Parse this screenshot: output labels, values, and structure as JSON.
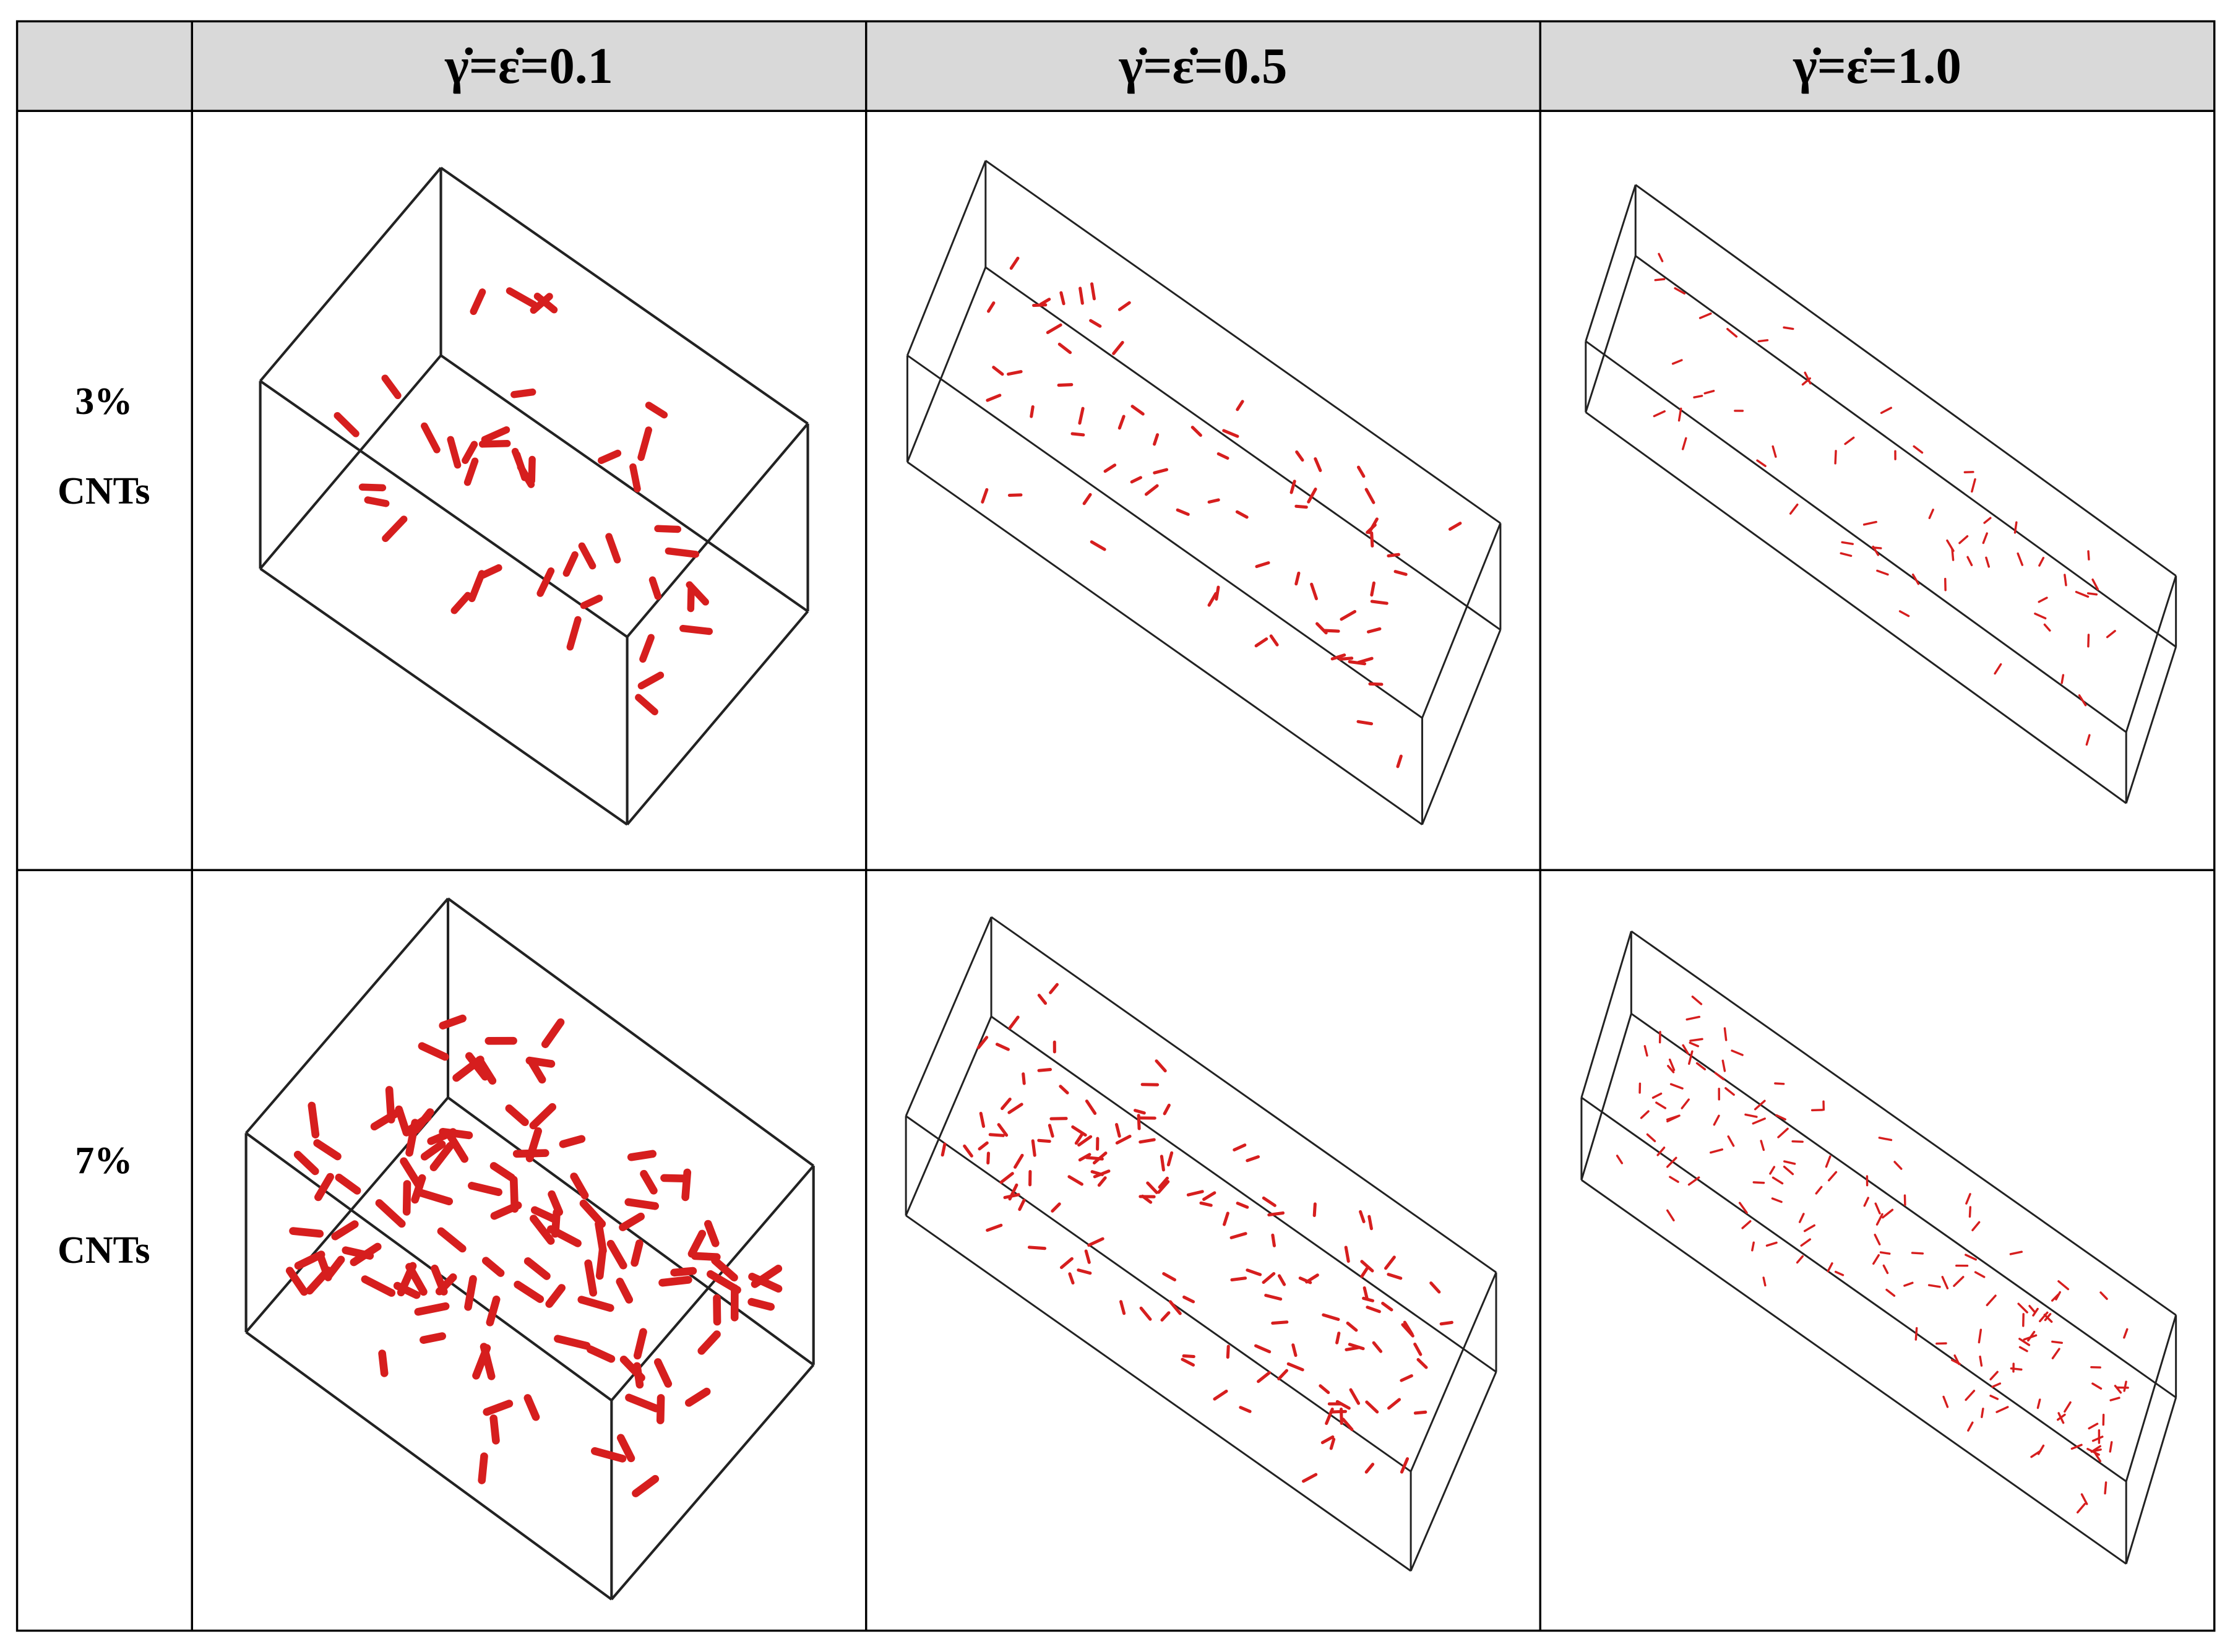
{
  "table": {
    "header": [
      "γ̇=ε̇=0.1",
      "γ̇=ε̇=0.5",
      "γ̇=ε̇=1.0"
    ],
    "rows": [
      {
        "label": [
          "3%",
          "CNTs"
        ]
      },
      {
        "label": [
          "7%",
          "CNTs"
        ]
      }
    ]
  }
}
